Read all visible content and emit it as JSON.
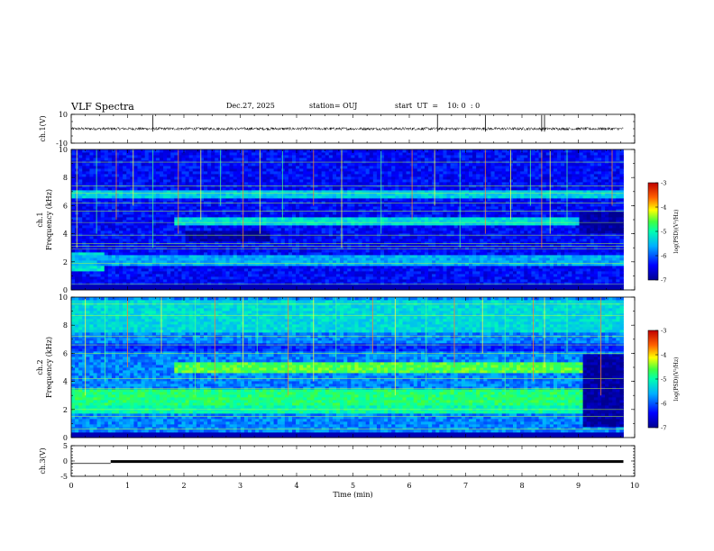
{
  "header": {
    "title": "VLF Spectra",
    "date": "Dec.27, 2025",
    "station": "station= OUJ",
    "start": "start  UT  =    10: 0  : 0"
  },
  "chart_data": [
    {
      "type": "line",
      "panel": "waveform-ch1",
      "ylabel": "ch.1(V)",
      "ylim": [
        -10,
        10
      ],
      "yticks": [
        "10",
        "-10"
      ],
      "x_units": "min",
      "xlim": [
        0,
        10
      ],
      "data_end": 9.8,
      "baseline": 0,
      "noise_amplitude": 1,
      "spike_times": [
        1.45,
        6.5,
        7.35,
        8.35,
        8.4
      ]
    },
    {
      "type": "heatmap",
      "panel": "spectrogram-ch1",
      "ylabel": "ch.1\nFrequency  (kHz)",
      "ylim": [
        0,
        10
      ],
      "yticks": [
        "0",
        "2",
        "4",
        "6",
        "8",
        "10"
      ],
      "xlim": [
        0,
        10
      ],
      "data_end": 9.8,
      "colorbar": {
        "label": "log(PSD)(V²/Hz)",
        "range": [
          -7,
          -3
        ],
        "ticks": [
          "-3",
          "-4",
          "-5",
          "-6",
          "-7"
        ]
      },
      "background_level": -6.4,
      "bands": [
        {
          "t0": 0.0,
          "t1": 9.8,
          "f0": 6.5,
          "f1": 7.2,
          "level": -5.4
        },
        {
          "t0": 1.8,
          "t1": 9.0,
          "f0": 4.6,
          "f1": 5.2,
          "level": -5.3
        },
        {
          "t0": 0.0,
          "t1": 0.6,
          "f0": 1.3,
          "f1": 2.7,
          "level": -5.2
        },
        {
          "t0": 0.0,
          "t1": 9.8,
          "f0": 1.8,
          "f1": 2.5,
          "level": -5.6
        },
        {
          "t0": 2.0,
          "t1": 3.5,
          "f0": 3.4,
          "f1": 4.2,
          "level": -6.9
        },
        {
          "t0": 9.0,
          "t1": 9.8,
          "f0": 4.0,
          "f1": 5.5,
          "level": -6.9
        }
      ],
      "tones_khz": [
        0.4,
        1.9,
        2.9,
        3.1,
        3.3,
        3.9,
        4.8,
        5.6,
        6.2,
        6.9,
        7.4,
        9.1
      ],
      "bursts_min": [
        0.1,
        0.45,
        0.8,
        1.1,
        1.45,
        1.9,
        2.3,
        2.65,
        3.05,
        3.35,
        3.75,
        4.3,
        4.8,
        5.5,
        6.05,
        6.45,
        6.9,
        7.35,
        7.8,
        8.15,
        8.35,
        8.5,
        8.8,
        9.6
      ]
    },
    {
      "type": "heatmap",
      "panel": "spectrogram-ch2",
      "ylabel": "ch.2\nFrequency  (kHz)",
      "ylim": [
        0,
        10
      ],
      "yticks": [
        "0",
        "2",
        "4",
        "6",
        "8",
        "10"
      ],
      "xlim": [
        0,
        10
      ],
      "data_end": 9.8,
      "colorbar": {
        "label": "log(PSD)(V²/Hz)",
        "range": [
          -7,
          -3
        ],
        "ticks": [
          "-3",
          "-4",
          "-5",
          "-6",
          "-7"
        ]
      },
      "background_level": -5.8,
      "bands": [
        {
          "t0": 0.0,
          "t1": 9.8,
          "f0": 7.5,
          "f1": 9.9,
          "level": -5.3
        },
        {
          "t0": 0.0,
          "t1": 9.8,
          "f0": 6.2,
          "f1": 6.7,
          "level": -6.2
        },
        {
          "t0": 1.8,
          "t1": 9.1,
          "f0": 4.6,
          "f1": 5.3,
          "level": -4.6
        },
        {
          "t0": 0.0,
          "t1": 9.1,
          "f0": 2.4,
          "f1": 3.4,
          "level": -4.8
        },
        {
          "t0": 0.0,
          "t1": 9.1,
          "f0": 1.8,
          "f1": 2.4,
          "level": -5.0
        },
        {
          "t0": 9.1,
          "t1": 9.8,
          "f0": 0.8,
          "f1": 6.0,
          "level": -6.9
        }
      ],
      "tones_khz": [
        0.6,
        1.5,
        2.0,
        3.5,
        4.2,
        6.0,
        6.6,
        7.2,
        8.7,
        9.5
      ],
      "bursts_min": [
        0.25,
        0.6,
        1.0,
        1.6,
        2.2,
        2.55,
        3.05,
        3.3,
        3.85,
        4.3,
        4.7,
        5.35,
        5.75,
        6.3,
        6.8,
        7.3,
        7.7,
        8.2,
        8.4,
        8.8,
        9.4
      ]
    },
    {
      "type": "line",
      "panel": "trigger-ch3",
      "ylabel": "ch.3(V)",
      "ylim": [
        -5,
        5
      ],
      "yticks": [
        "5",
        "0",
        "-5"
      ],
      "xlim": [
        0,
        10
      ],
      "segments": [
        {
          "t0": 0.0,
          "t1": 0.7,
          "v": -0.8
        },
        {
          "t0": 0.7,
          "t1": 9.8,
          "v": -0.2
        }
      ]
    }
  ],
  "xaxis": {
    "label": "Time  (min)",
    "ticks": [
      "0",
      "1",
      "2",
      "3",
      "4",
      "5",
      "6",
      "7",
      "8",
      "9",
      "10"
    ]
  }
}
